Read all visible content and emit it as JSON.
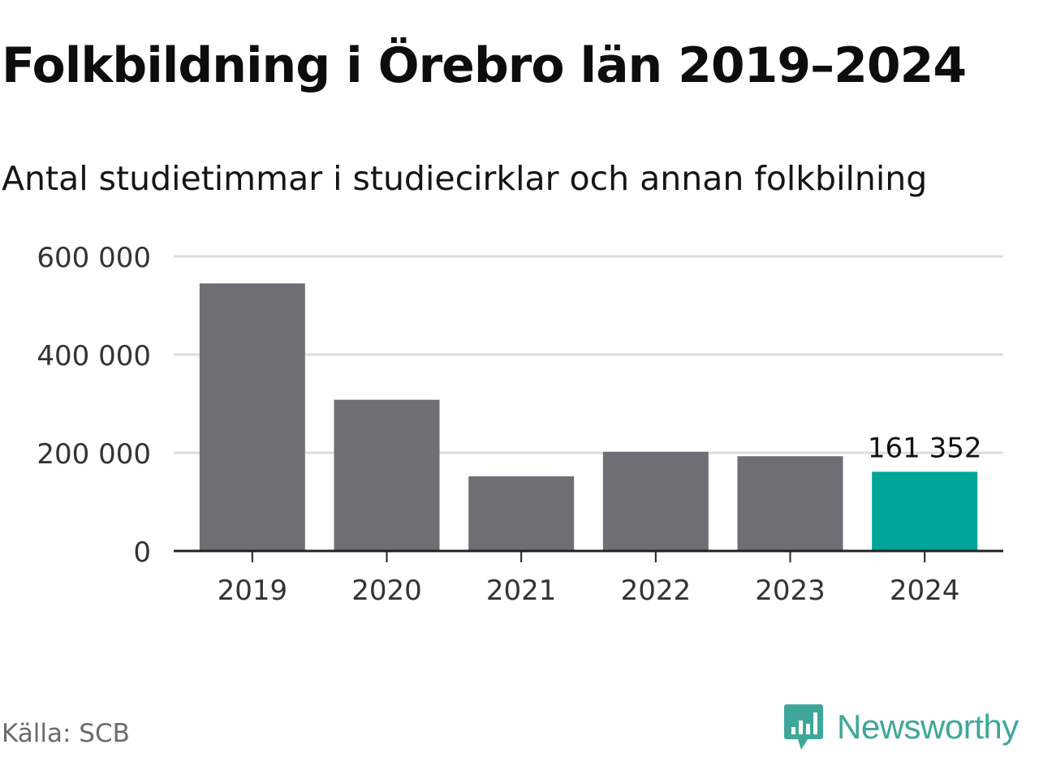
{
  "chart_data": {
    "type": "bar",
    "title": "Folkbildning i Örebro län 2019–2024",
    "subtitle": "Antal studietimmar i studiecirklar och annan folkbilning",
    "categories": [
      "2019",
      "2020",
      "2021",
      "2022",
      "2023",
      "2024"
    ],
    "values": [
      545000,
      308000,
      152000,
      202000,
      193000,
      161352
    ],
    "highlight_label": "161 352",
    "yticks": [
      "0",
      "200 000",
      "400 000",
      "600 000"
    ],
    "ytick_values": [
      0,
      200000,
      400000,
      600000
    ],
    "ylim": [
      0,
      600000
    ],
    "grid": true,
    "colors": {
      "bar": "#6f6e75",
      "highlight": "#00a59a",
      "grid": "#dcdcdc",
      "axis": "#222222"
    }
  },
  "footer": {
    "source": "Källa: SCB",
    "brand": "Newsworthy",
    "brand_icon": "newsworthy-logo-icon"
  }
}
